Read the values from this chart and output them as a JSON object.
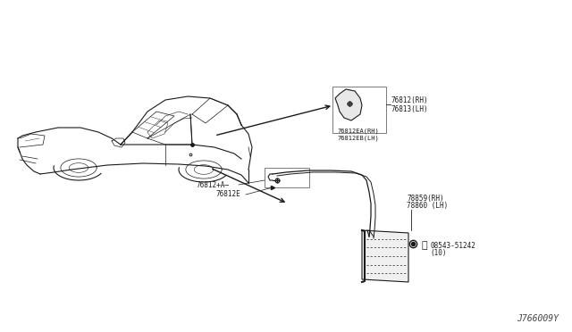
{
  "diagram_code": "J766009Y",
  "background_color": "#ffffff",
  "line_color": "#1a1a1a",
  "labels": {
    "top_right_pn1": "76812(RH)",
    "top_right_pn2": "76813(LH)",
    "top_right_sub1": "76812EA(RH)",
    "top_right_sub2": "76812EB(LH)",
    "bottom_right_pn1": "78859(RH)",
    "bottom_right_pn2": "78860 (LH)",
    "bottom_right_screw": "08543-51242",
    "bottom_right_screw2": "(10)",
    "left_label1": "76812+A",
    "left_label2": "76812E"
  },
  "fig_width": 6.4,
  "fig_height": 3.72,
  "dpi": 100
}
